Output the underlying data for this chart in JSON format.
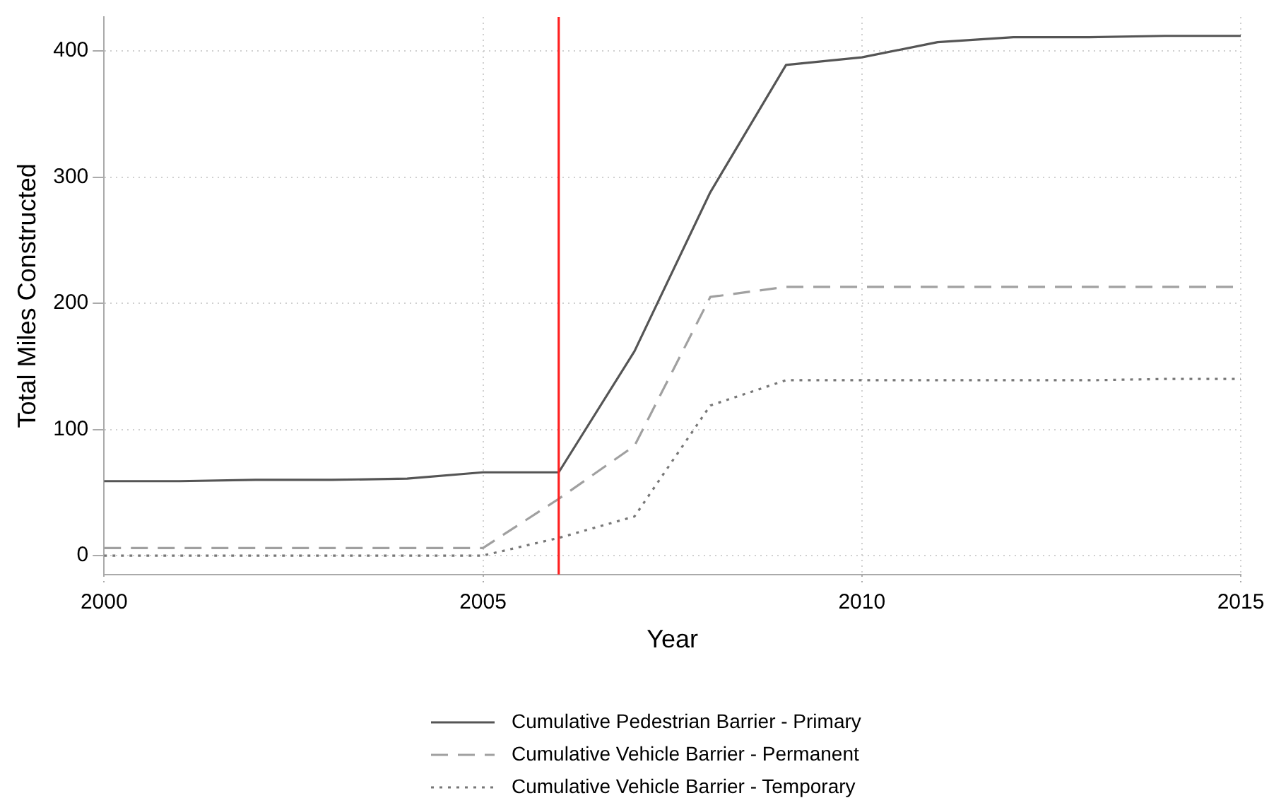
{
  "chart_data": {
    "type": "line",
    "xlabel": "Year",
    "ylabel": "Total Miles Constructed",
    "x": [
      2000,
      2001,
      2002,
      2003,
      2004,
      2005,
      2006,
      2007,
      2008,
      2009,
      2010,
      2011,
      2012,
      2013,
      2014,
      2015
    ],
    "series": [
      {
        "name": "Cumulative Pedestrian Barrier - Primary",
        "color": "#555555",
        "line_style": "solid",
        "values": [
          59,
          59,
          60,
          60,
          61,
          66,
          66,
          162,
          288,
          389,
          395,
          407,
          411,
          411,
          412,
          412
        ]
      },
      {
        "name": "Cumulative Vehicle Barrier - Permanent",
        "color": "#a0a0a0",
        "line_style": "dashed",
        "values": [
          6,
          6,
          6,
          6,
          6,
          6,
          45,
          87,
          205,
          213,
          213,
          213,
          213,
          213,
          213,
          213
        ]
      },
      {
        "name": "Cumulative Vehicle Barrier - Temporary",
        "color": "#777777",
        "line_style": "dotted",
        "values": [
          0,
          0,
          0,
          0,
          0,
          0,
          14,
          31,
          119,
          139,
          139,
          139,
          139,
          139,
          140,
          140
        ]
      }
    ],
    "xlim": [
      2000,
      2015
    ],
    "xticks": [
      2000,
      2005,
      2010,
      2015
    ],
    "ylim": [
      -15,
      427
    ],
    "yticks": [
      0,
      100,
      200,
      300,
      400
    ],
    "ref_lines": [
      {
        "axis": "x",
        "value": 2006,
        "color": "#ff2020"
      }
    ],
    "grid": true,
    "legend": "bottom",
    "marker": "none"
  }
}
